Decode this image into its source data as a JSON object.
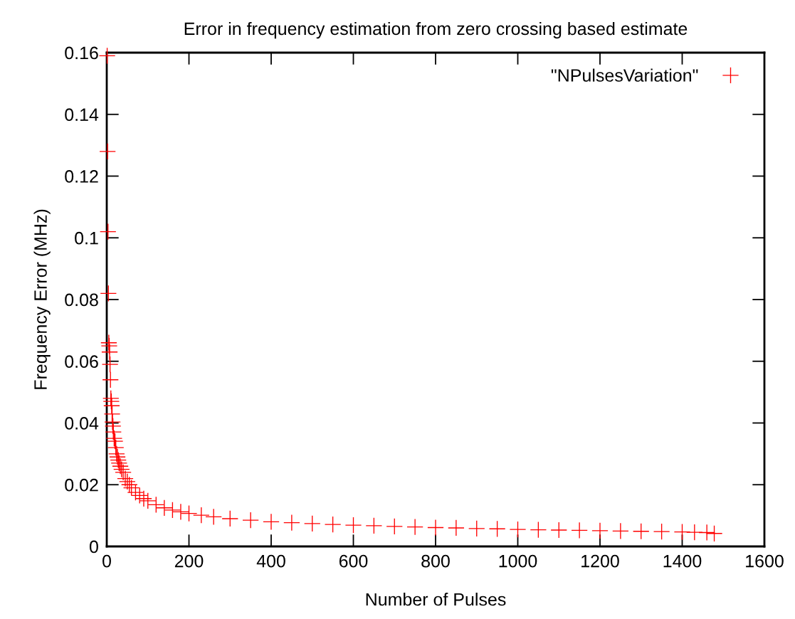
{
  "chart_data": {
    "type": "scatter",
    "title": "Error in frequency estimation from zero crossing based estimate",
    "xlabel": "Number of Pulses",
    "ylabel": "Frequency Error (MHz)",
    "xlim": [
      0,
      1600
    ],
    "xticks": [
      0,
      200,
      400,
      600,
      800,
      1000,
      1200,
      1400,
      1600
    ],
    "ylim": [
      0,
      0.16
    ],
    "yticks": [
      0,
      0.02,
      0.04,
      0.06,
      0.08,
      0.1,
      0.12,
      0.14,
      0.16
    ],
    "grid": false,
    "legend": "top right",
    "marker": "cross",
    "series": [
      {
        "name": "\"NPulsesVariation\"",
        "color": "#ff0000",
        "x": [
          1,
          2,
          3,
          4,
          5,
          6,
          7,
          8,
          9,
          10,
          11,
          12,
          13,
          14,
          15,
          16,
          18,
          20,
          22,
          24,
          26,
          28,
          30,
          33,
          36,
          40,
          45,
          50,
          55,
          60,
          70,
          80,
          90,
          100,
          120,
          140,
          160,
          180,
          200,
          230,
          260,
          300,
          350,
          400,
          450,
          500,
          550,
          600,
          650,
          700,
          750,
          800,
          850,
          900,
          950,
          1000,
          1050,
          1100,
          1150,
          1200,
          1250,
          1300,
          1350,
          1400,
          1430,
          1460,
          1478
        ],
        "values": [
          0.159,
          0.128,
          0.102,
          0.082,
          0.066,
          0.065,
          0.063,
          0.059,
          0.054,
          0.048,
          0.047,
          0.0456,
          0.0429,
          0.0403,
          0.039,
          0.0371,
          0.035,
          0.0341,
          0.032,
          0.03,
          0.029,
          0.028,
          0.027,
          0.026,
          0.025,
          0.024,
          0.022,
          0.021,
          0.02,
          0.019,
          0.0175,
          0.0165,
          0.0155,
          0.0148,
          0.0135,
          0.0125,
          0.0118,
          0.0112,
          0.0107,
          0.0101,
          0.0096,
          0.009,
          0.0085,
          0.008,
          0.0077,
          0.0074,
          0.0071,
          0.0069,
          0.0067,
          0.0065,
          0.0063,
          0.0061,
          0.006,
          0.0058,
          0.0057,
          0.0055,
          0.0054,
          0.0053,
          0.0052,
          0.0051,
          0.005,
          0.0049,
          0.0048,
          0.0047,
          0.0046,
          0.0045,
          0.0042
        ]
      }
    ]
  }
}
